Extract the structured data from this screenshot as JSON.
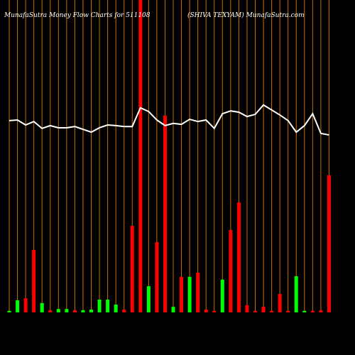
{
  "chart_data": {
    "type": "bar",
    "title": "MunafaSutra  Money Flow  Charts for 511108",
    "subtitle": "(SHIVA TEXYAM) MunafaSutra.com",
    "categories": [
      null,
      null,
      null,
      null,
      null,
      null,
      null,
      null,
      null,
      null,
      null,
      null,
      null,
      null,
      null,
      null,
      null,
      null,
      null,
      null,
      null,
      null,
      null,
      null,
      null,
      null,
      null,
      null,
      null,
      null,
      null,
      null,
      null,
      null,
      null,
      null,
      null,
      null,
      null,
      null
    ],
    "ylim": [
      0,
      100
    ],
    "grid": true,
    "grid_color": "#c87000",
    "background": "#000000",
    "series": [
      {
        "type": "bar",
        "values": [
          0.5,
          3.9,
          4.5,
          20,
          3,
          0.7,
          1.1,
          1.1,
          0.7,
          0.7,
          0.9,
          4.1,
          4.1,
          2.5,
          0.9,
          27.7,
          105,
          8.4,
          22.5,
          63,
          1.8,
          11.4,
          11.4,
          12.7,
          0.9,
          0.5,
          10.5,
          26.4,
          35.2,
          2.3,
          0.5,
          1.8,
          0.5,
          5.9,
          0.5,
          11.6,
          0.5,
          0.5,
          0.7,
          43.9
        ],
        "colors": [
          "#00ff00",
          "#00ff00",
          "#ff0000",
          "#ff0000",
          "#00ff00",
          "#ff0000",
          "#00ff00",
          "#00ff00",
          "#ff0000",
          "#00ff00",
          "#00ff00",
          "#00ff00",
          "#00ff00",
          "#00ff00",
          "#ff0000",
          "#ff0000",
          "#ff0000",
          "#00ff00",
          "#ff0000",
          "#ff0000",
          "#00ff00",
          "#ff0000",
          "#00ff00",
          "#ff0000",
          "#ff0000",
          "#ff0000",
          "#00ff00",
          "#ff0000",
          "#ff0000",
          "#ff0000",
          "#ff0000",
          "#ff0000",
          "#ff0000",
          "#ff0000",
          "#ff0000",
          "#00ff00",
          "#00ff00",
          "#ff0000",
          "#ff0000",
          "#ff0000"
        ]
      },
      {
        "type": "line",
        "color": "#ffffff",
        "values": [
          61.4,
          61.6,
          60,
          61.1,
          58.9,
          59.8,
          59.1,
          59.1,
          59.5,
          58.6,
          57.7,
          59.1,
          60,
          59.8,
          59.5,
          59.5,
          65.5,
          64.3,
          61.6,
          59.8,
          60.5,
          60.2,
          61.8,
          61.1,
          61.6,
          58.9,
          63.6,
          64.5,
          64.1,
          62.7,
          63.4,
          66.4,
          64.8,
          63.2,
          61.4,
          57.7,
          59.8,
          63.6,
          57.3,
          56.8
        ]
      }
    ]
  }
}
